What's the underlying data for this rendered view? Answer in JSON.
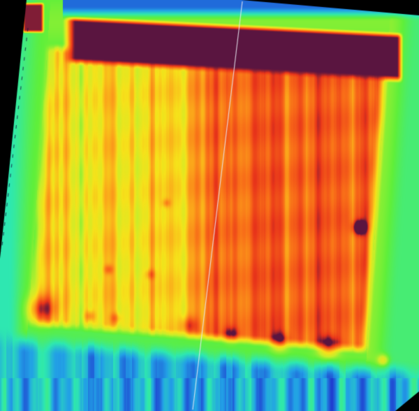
{
  "image": {
    "kind": "thermal-heatmap",
    "palette": [
      "#1f3fd0",
      "#22a0e6",
      "#2ee8b0",
      "#5fef3a",
      "#c8ee2a",
      "#f6e21a",
      "#fba51a",
      "#f86a18",
      "#e8341a",
      "#5a1540"
    ],
    "dominant_colors": {
      "hot_band": "#5a1540",
      "warm_left": "#fba51a",
      "warm_right": "#e8341a",
      "border": "#5fef3a",
      "cold": "#1f3fd0"
    }
  }
}
